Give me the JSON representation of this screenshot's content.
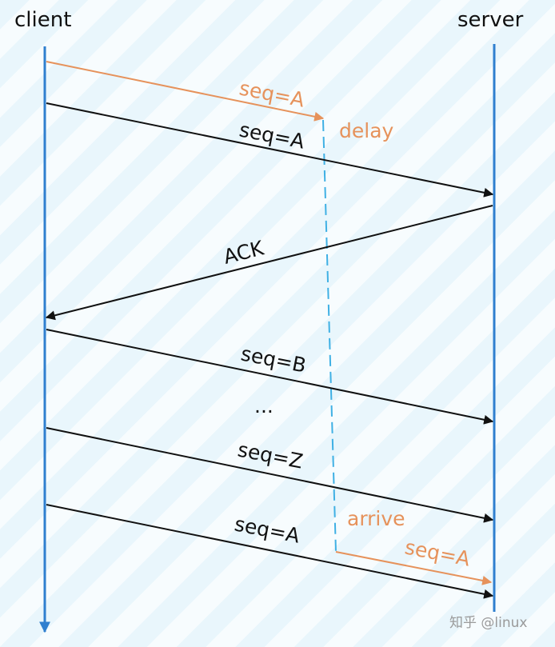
{
  "participants": {
    "client": "client",
    "server": "server"
  },
  "messages": {
    "m1_label": "seq=A",
    "m2_label": "seq=A",
    "m3_label": "ACK",
    "m4_label": "seq=B",
    "ellipsis": "...",
    "m5_label": "seq=Z",
    "m6_label": "seq=A",
    "m7_label": "seq=A"
  },
  "annotations": {
    "delay": "delay",
    "arrive": "arrive"
  },
  "watermark": "知乎 @linux",
  "colors": {
    "lifeline": "#2f7fcf",
    "message": "#111111",
    "delayed_packet": "#e6925b",
    "delay_path": "#3fb0e4"
  }
}
